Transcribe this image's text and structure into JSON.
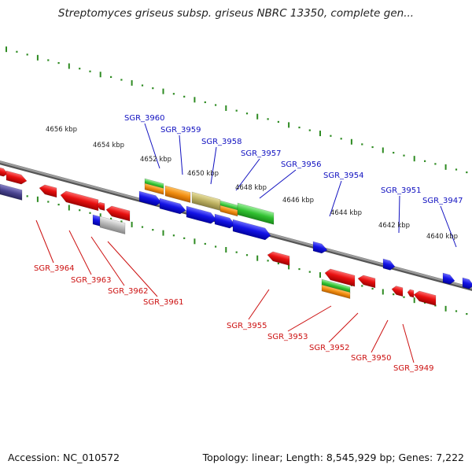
{
  "title": "Streptomyces griseus subsp. griseus NBRC 13350, complete gen...",
  "footer": {
    "accession": "Accession: NC_010572",
    "summary": "Topology: linear; Length: 8,545,929 bp; Genes: 7,222"
  },
  "colors": {
    "backbone": "#808080",
    "scale_dots": "#2e8b22",
    "upper_label": "#1010c0",
    "lower_label": "#cc1010",
    "red_gene": "#e01010",
    "blue_gene": "#1010e0",
    "green_feature": "#30c030",
    "orange_feature": "#f08c10",
    "khaki_feature": "#bcb060",
    "gray_feature": "#b8b8b8",
    "purple_feature": "#4a4490"
  },
  "scale_labels": [
    "4656 kbp",
    "4654 kbp",
    "4652 kbp",
    "4650 kbp",
    "4648 kbp",
    "4646 kbp",
    "4644 kbp",
    "4642 kbp",
    "4640 kbp"
  ],
  "upper_genes": [
    "SGR_3960",
    "SGR_3959",
    "SGR_3958",
    "SGR_3957",
    "SGR_3956",
    "SGR_3954",
    "SGR_3951",
    "SGR_3947"
  ],
  "lower_genes": [
    "SGR_3964",
    "SGR_3963",
    "SGR_3962",
    "SGR_3961",
    "SGR_3955",
    "SGR_3953",
    "SGR_3952",
    "SGR_3950",
    "SGR_3949"
  ]
}
